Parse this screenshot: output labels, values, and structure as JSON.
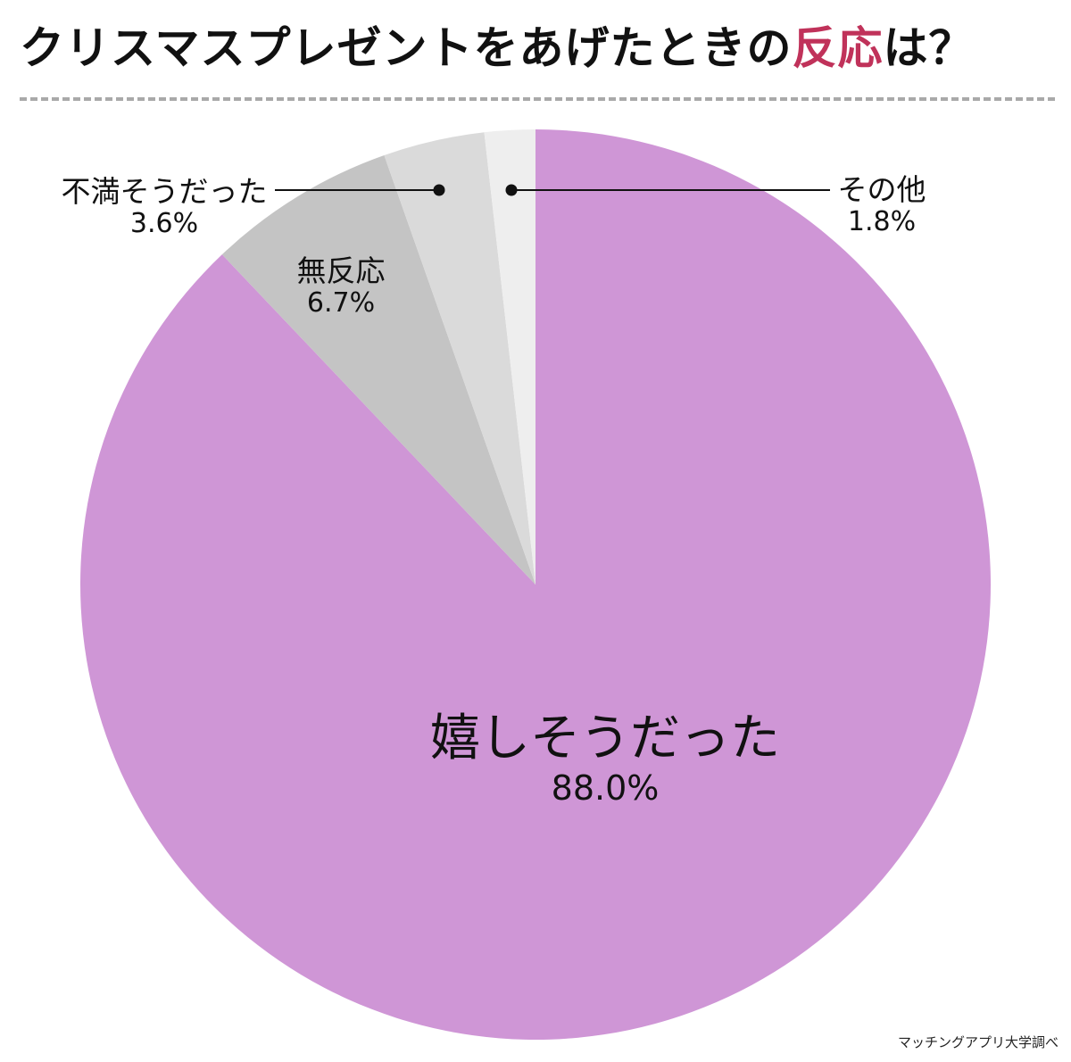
{
  "title": {
    "prefix": "クリスマスプレゼントをあげたときの",
    "accent": "反応",
    "suffix": "は？"
  },
  "source": "マッチングアプリ大学調べ",
  "chart_data": {
    "type": "pie",
    "title": "クリスマスプレゼントをあげたときの反応は？",
    "slices": [
      {
        "label": "嬉しそうだった",
        "value": 88.0,
        "display": "88.0%",
        "color": "#cf96d6"
      },
      {
        "label": "無反応",
        "value": 6.7,
        "display": "6.7%",
        "color": "#c4c4c4"
      },
      {
        "label": "不満そうだった",
        "value": 3.6,
        "display": "3.6%",
        "color": "#dadada"
      },
      {
        "label": "その他",
        "value": 1.8,
        "display": "1.8%",
        "color": "#eeeeee"
      }
    ],
    "start": "12 o'clock",
    "direction": "clockwise"
  }
}
